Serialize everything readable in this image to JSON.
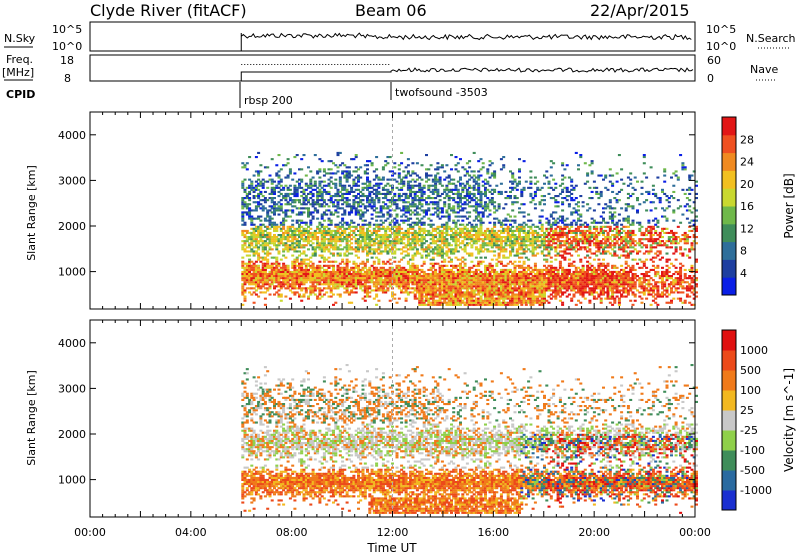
{
  "header": {
    "station": "Clyde River (fitACF)",
    "beam": "Beam 06",
    "date": "22/Apr/2015"
  },
  "status_panels": {
    "nsky_label": "N.Sky",
    "nsky_ticks": [
      "10^5",
      "10^0"
    ],
    "nsearch_label": "N.Search",
    "nsearch_ticks": [
      "10^5",
      "10^0"
    ],
    "freq_label_line1": "Freq.",
    "freq_label_line2": "[MHz]",
    "freq_ticks": [
      "18",
      "8"
    ],
    "nave_label": "Nave",
    "nave_ticks": [
      "60",
      "0"
    ],
    "cpid_label": "CPID",
    "cpid_segments": [
      {
        "name": "rbsp 200",
        "start_hour": 6.0
      },
      {
        "name": "twofsound -3503",
        "start_hour": 12.0
      }
    ]
  },
  "chart_data": [
    {
      "type": "heatmap",
      "name": "power",
      "ylabel": "Slant Range [km]",
      "xlabel": "",
      "ylim": [
        180,
        4500
      ],
      "xlim": [
        0,
        24
      ],
      "yticks": [
        "1000",
        "2000",
        "3000",
        "4000"
      ],
      "colorbar": {
        "label": "Power [dB]",
        "ticks": [
          "28",
          "24",
          "20",
          "16",
          "12",
          "8",
          "4"
        ],
        "range": [
          0,
          30
        ],
        "colors": [
          "#0a1fe6",
          "#1e3fa0",
          "#2e6e9a",
          "#3f8d5a",
          "#6fb84a",
          "#c9d830",
          "#f2c020",
          "#f08a20",
          "#ef5020",
          "#e21616"
        ]
      },
      "data_start_hour": 6.0,
      "data_end_hour": 24.0
    },
    {
      "type": "heatmap",
      "name": "velocity",
      "ylabel": "Slant Range [km]",
      "xlabel": "Time UT",
      "ylim": [
        180,
        4500
      ],
      "xlim": [
        0,
        24
      ],
      "yticks": [
        "1000",
        "2000",
        "3000",
        "4000"
      ],
      "xticks": [
        "00:00",
        "04:00",
        "08:00",
        "12:00",
        "16:00",
        "20:00",
        "00:00"
      ],
      "colorbar": {
        "label": "Velocity [m s^-1]",
        "ticks": [
          "1000",
          "500",
          "100",
          "25",
          "-25",
          "-100",
          "-500",
          "-1000"
        ],
        "colors": [
          "#1a2fd0",
          "#2a6aa0",
          "#3f8d5a",
          "#8fd04a",
          "#c8c8c8",
          "#f2b820",
          "#f07a1a",
          "#ec4a1a",
          "#e01010"
        ]
      },
      "data_start_hour": 6.0,
      "data_end_hour": 24.0
    }
  ]
}
